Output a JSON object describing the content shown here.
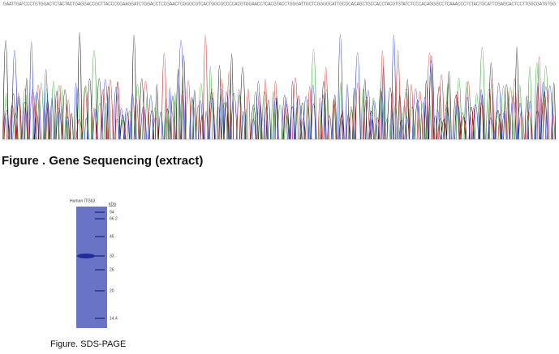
{
  "sequencing": {
    "sequence": "GAATTGATCCCTGTGGACTCTACTACTGAGGACCGCTTACCCCGAAGGATCTGGACCTCCGAACTCGGGCGTCACTGGCGCCCCACGTGGAACCTCACGTACCTGGGATTGCTCGGGGCATTGCGCACAGCTGCCACCTACGTGTATCTCCCACAGGGCCTCAAACCCTCTACTGCATTCGAGCACTCCTTGGCGATGTGG",
    "caption": "Figure . Gene Sequencing (extract)"
  },
  "sds_page": {
    "lane_label": "Human ITGb3",
    "unit": "kDa",
    "markers": [
      "94",
      "66.2",
      "45",
      "33",
      "26",
      "20",
      "14.4"
    ],
    "caption": "Figure. SDS-PAGE"
  }
}
